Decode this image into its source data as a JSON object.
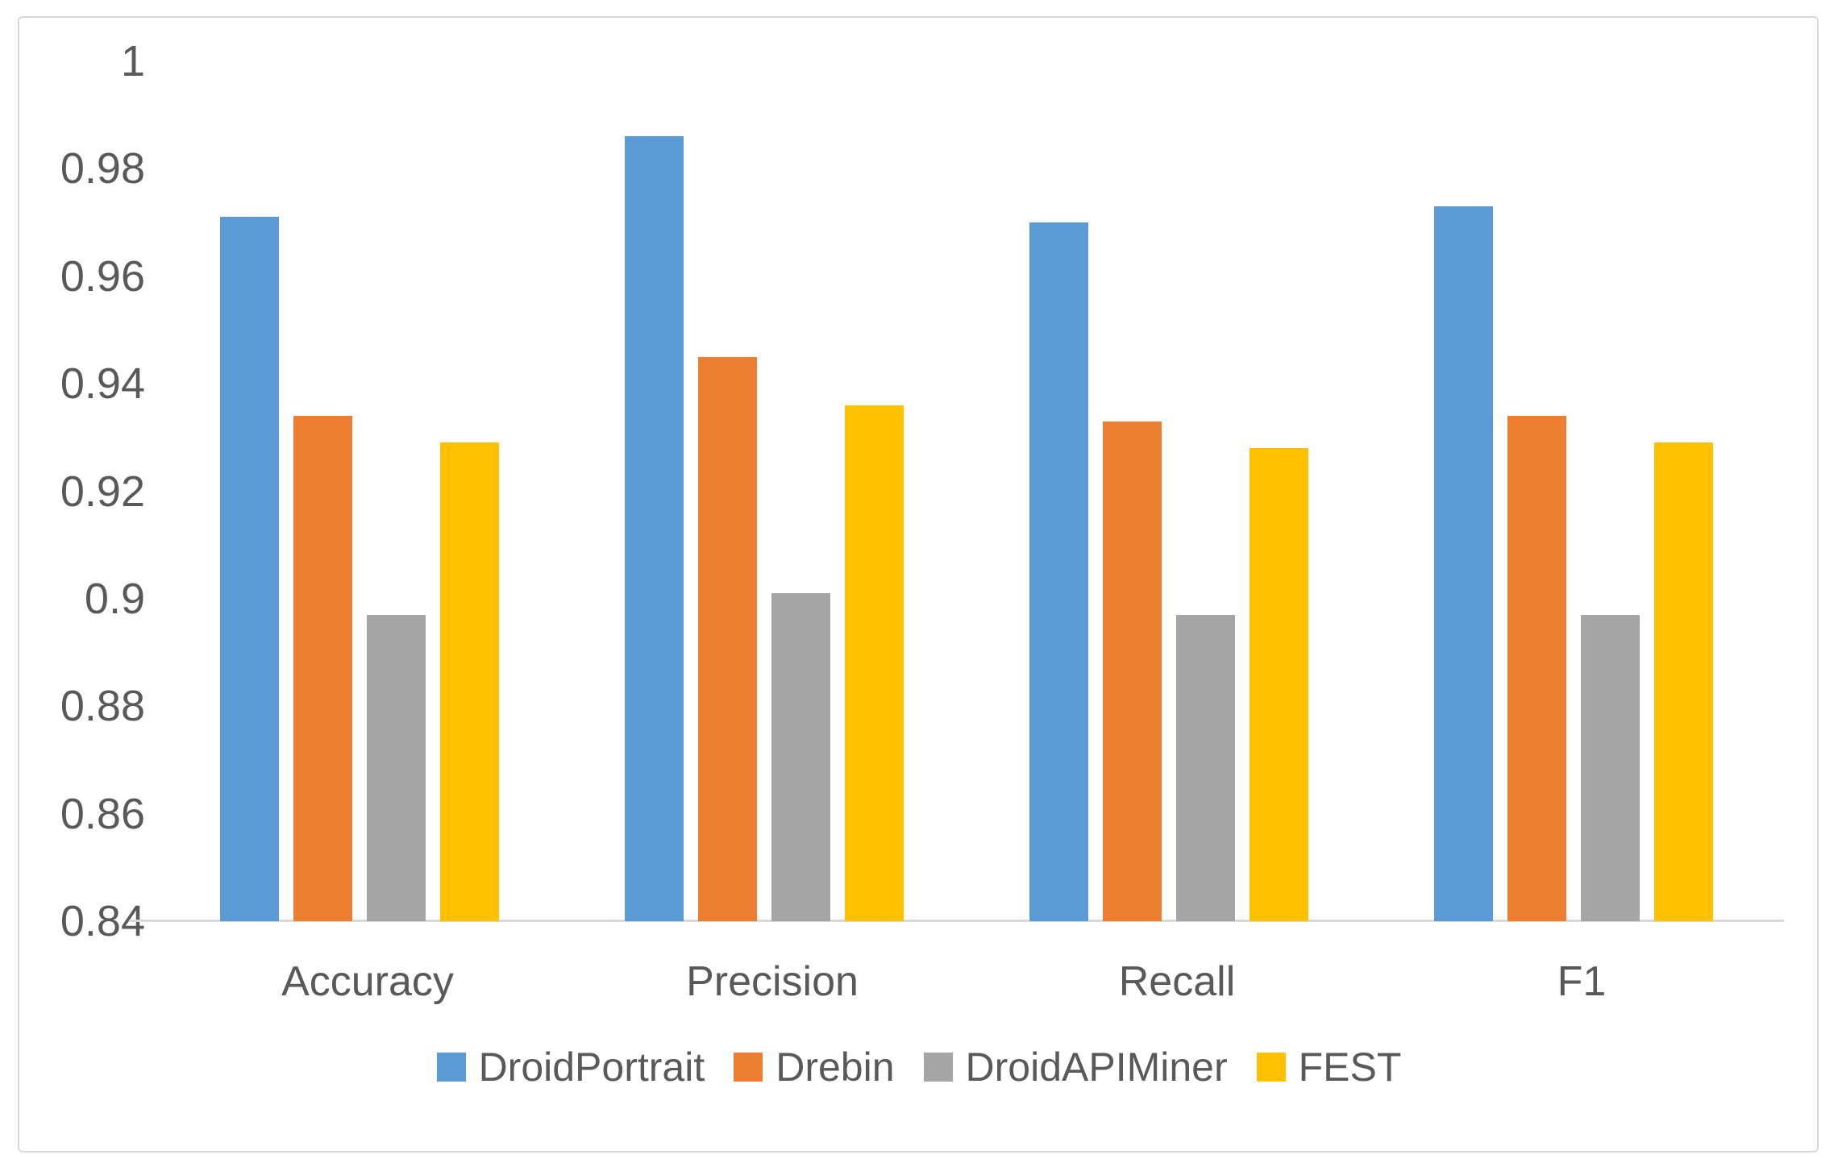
{
  "chart_data": {
    "type": "bar",
    "title": "",
    "xlabel": "",
    "ylabel": "",
    "categories": [
      "Accuracy",
      "Precision",
      "Recall",
      "F1"
    ],
    "series": [
      {
        "name": "DroidPortrait",
        "color": "#5B9BD5",
        "values": [
          0.971,
          0.986,
          0.97,
          0.973
        ]
      },
      {
        "name": "Drebin",
        "color": "#ED7D31",
        "values": [
          0.934,
          0.945,
          0.933,
          0.934
        ]
      },
      {
        "name": "DroidAPIMiner",
        "color": "#A5A5A5",
        "values": [
          0.897,
          0.901,
          0.897,
          0.897
        ]
      },
      {
        "name": "FEST",
        "color": "#FFC000",
        "values": [
          0.929,
          0.936,
          0.928,
          0.929
        ]
      }
    ],
    "ylim": [
      0.84,
      1.0
    ],
    "ytick_step": 0.02,
    "ytick_labels": [
      "1",
      "0.98",
      "0.96",
      "0.94",
      "0.92",
      "0.9",
      "0.88",
      "0.86",
      "0.84"
    ],
    "grid": false,
    "legend_position": "bottom",
    "axis_color": "#D9D9D9",
    "text_color": "#595959",
    "background_color": "#FFFFFF"
  }
}
